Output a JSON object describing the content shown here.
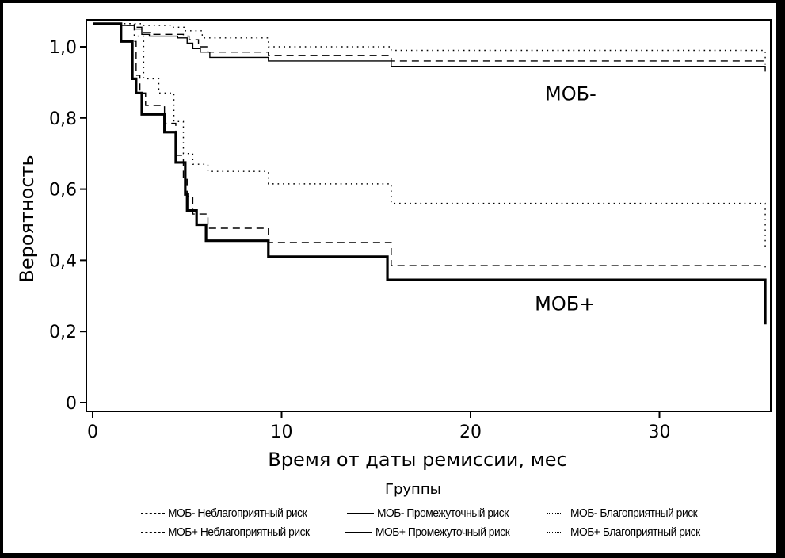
{
  "chart_data": {
    "type": "line",
    "subtype": "kaplan-meier-step",
    "title": "",
    "xlabel": "Время от даты ремиссии, мес",
    "ylabel": "Вероятность",
    "xlim": [
      -0.3,
      36.2
    ],
    "ylim": [
      -0.03,
      1.07
    ],
    "xticks": [
      0,
      10,
      20,
      30
    ],
    "xtick_labels": [
      "0",
      "10",
      "20",
      "30"
    ],
    "yticks": [
      0,
      0.2,
      0.4,
      0.6,
      0.8,
      1.0
    ],
    "ytick_labels": [
      "0",
      "0,2",
      "0,4",
      "0,6",
      "0,8",
      "1,0"
    ],
    "grid": false,
    "annotations": [
      {
        "text": "МОБ-",
        "x": 25.3,
        "y": 0.85
      },
      {
        "text": "МОБ+",
        "x": 25.0,
        "y": 0.26
      }
    ],
    "legend": {
      "title": "Группы",
      "placement": "bottom",
      "entries": [
        {
          "label": "МОБ- Неблагоприятный риск",
          "style": "dashed"
        },
        {
          "label": "МОБ- Промежуточный риск",
          "style": "solid"
        },
        {
          "label": "МОБ- Благоприятный риск",
          "style": "dotted"
        },
        {
          "label": "МОБ+ Неблагоприятный риск",
          "style": "dashed"
        },
        {
          "label": "МОБ+ Промежуточный риск",
          "style": "solid"
        },
        {
          "label": "МОБ+ Благоприятный риск",
          "style": "dotted"
        }
      ]
    },
    "series": [
      {
        "name": "МОБ- Неблагоприятный риск",
        "style": "dashed",
        "weight": "thin",
        "x": [
          0,
          1.5,
          2.2,
          2.6,
          3.2,
          4.8,
          5.1,
          5.6,
          6.1,
          9.3,
          15.8,
          35.6
        ],
        "y": [
          1.065,
          1.06,
          1.055,
          1.04,
          1.035,
          1.03,
          1.02,
          1.0,
          0.985,
          0.975,
          0.96,
          0.95
        ]
      },
      {
        "name": "МОБ- Промежуточный риск",
        "style": "solid",
        "weight": "thin",
        "x": [
          0,
          1.5,
          2.2,
          2.6,
          3.0,
          4.5,
          5.0,
          5.3,
          5.7,
          6.2,
          9.3,
          15.8,
          35.6
        ],
        "y": [
          1.065,
          1.06,
          1.05,
          1.035,
          1.03,
          1.025,
          1.01,
          0.995,
          0.985,
          0.97,
          0.96,
          0.945,
          0.93
        ]
      },
      {
        "name": "МОБ- Благоприятный риск",
        "style": "dotted",
        "weight": "thin",
        "x": [
          0,
          2.6,
          4.2,
          4.9,
          5.8,
          9.3,
          15.8,
          35.6
        ],
        "y": [
          1.065,
          1.06,
          1.055,
          1.045,
          1.025,
          1.0,
          0.99,
          0.965
        ]
      },
      {
        "name": "МОБ+ Неблагоприятный риск",
        "style": "dashed",
        "weight": "thin",
        "x": [
          0,
          1.5,
          2.3,
          2.5,
          2.8,
          3.8,
          4.4,
          4.8,
          5.0,
          5.3,
          6.1,
          9.3,
          15.8,
          35.6
        ],
        "y": [
          1.065,
          1.015,
          0.92,
          0.87,
          0.835,
          0.785,
          0.695,
          0.63,
          0.58,
          0.53,
          0.49,
          0.45,
          0.385,
          0.38
        ]
      },
      {
        "name": "МОБ+ Промежуточный риск",
        "style": "solid",
        "weight": "thick",
        "x": [
          0,
          1.5,
          2.1,
          2.3,
          2.6,
          3.8,
          4.4,
          4.9,
          5.0,
          5.5,
          6.0,
          9.3,
          15.6,
          35.6
        ],
        "y": [
          1.065,
          1.015,
          0.91,
          0.87,
          0.81,
          0.76,
          0.675,
          0.585,
          0.54,
          0.5,
          0.455,
          0.41,
          0.345,
          0.22
        ]
      },
      {
        "name": "МОБ+ Благоприятный риск",
        "style": "dotted",
        "weight": "thin",
        "x": [
          0,
          2.2,
          2.7,
          3.5,
          4.3,
          4.8,
          5.3,
          6.1,
          9.3,
          15.8,
          35.6
        ],
        "y": [
          1.065,
          1.03,
          0.91,
          0.87,
          0.79,
          0.7,
          0.67,
          0.65,
          0.615,
          0.56,
          0.43
        ]
      }
    ]
  }
}
